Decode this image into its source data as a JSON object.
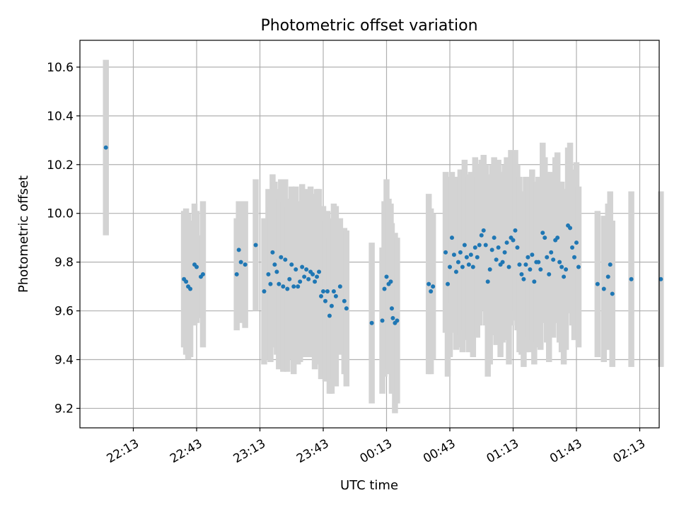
{
  "chart_data": {
    "type": "scatter",
    "title": "Photometric offset variation",
    "xlabel": "UTC time",
    "ylabel": "Photometric offset",
    "grid": true,
    "x_tick_labels": [
      "22:13",
      "22:43",
      "23:13",
      "23:43",
      "00:13",
      "00:43",
      "01:13",
      "01:43",
      "02:13"
    ],
    "x_ticks_minutes": [
      0,
      30,
      60,
      90,
      120,
      150,
      180,
      210,
      240
    ],
    "xlim_minutes": [
      -25,
      250
    ],
    "y_ticks": [
      9.2,
      9.4,
      9.6,
      9.8,
      10.0,
      10.2,
      10.4,
      10.6
    ],
    "ylim": [
      9.12,
      10.71
    ],
    "marker_color": "#1f77b4",
    "errorbar_color": "#d3d3d3",
    "series": [
      {
        "points": [
          [
            -13,
            10.27,
            0.36
          ],
          [
            24,
            9.73,
            0.28
          ],
          [
            25,
            9.72,
            0.3
          ],
          [
            26,
            9.7,
            0.3
          ],
          [
            27,
            9.69,
            0.28
          ],
          [
            29,
            9.79,
            0.25
          ],
          [
            30,
            9.78,
            0.23
          ],
          [
            32,
            9.74,
            0.17
          ],
          [
            33,
            9.75,
            0.3
          ],
          [
            49,
            9.75,
            0.23
          ],
          [
            50,
            9.85,
            0.2
          ],
          [
            51,
            9.8,
            0.25
          ],
          [
            53,
            9.79,
            0.26
          ],
          [
            58,
            9.87,
            0.27
          ],
          [
            62,
            9.68,
            0.3
          ],
          [
            64,
            9.75,
            0.35
          ],
          [
            65,
            9.71,
            0.32
          ],
          [
            66,
            9.84,
            0.32
          ],
          [
            67,
            9.79,
            0.34
          ],
          [
            68,
            9.76,
            0.34
          ],
          [
            69,
            9.71,
            0.35
          ],
          [
            70,
            9.82,
            0.32
          ],
          [
            71,
            9.7,
            0.35
          ],
          [
            72,
            9.81,
            0.33
          ],
          [
            73,
            9.69,
            0.34
          ],
          [
            74,
            9.73,
            0.33
          ],
          [
            75,
            9.79,
            0.32
          ],
          [
            76,
            9.7,
            0.36
          ],
          [
            77,
            9.77,
            0.34
          ],
          [
            78,
            9.7,
            0.32
          ],
          [
            79,
            9.72,
            0.33
          ],
          [
            80,
            9.78,
            0.34
          ],
          [
            81,
            9.74,
            0.33
          ],
          [
            82,
            9.77,
            0.33
          ],
          [
            83,
            9.73,
            0.32
          ],
          [
            84,
            9.76,
            0.35
          ],
          [
            85,
            9.75,
            0.33
          ],
          [
            86,
            9.72,
            0.36
          ],
          [
            87,
            9.74,
            0.36
          ],
          [
            88,
            9.76,
            0.34
          ],
          [
            89,
            9.66,
            0.34
          ],
          [
            90,
            9.68,
            0.35
          ],
          [
            91,
            9.64,
            0.33
          ],
          [
            92,
            9.68,
            0.33
          ],
          [
            93,
            9.58,
            0.32
          ],
          [
            94,
            9.62,
            0.36
          ],
          [
            95,
            9.68,
            0.36
          ],
          [
            96,
            9.66,
            0.37
          ],
          [
            98,
            9.7,
            0.28
          ],
          [
            100,
            9.64,
            0.3
          ],
          [
            101,
            9.61,
            0.32
          ],
          [
            113,
            9.55,
            0.33
          ],
          [
            118,
            9.56,
            0.3
          ],
          [
            119,
            9.69,
            0.36
          ],
          [
            120,
            9.74,
            0.4
          ],
          [
            121,
            9.71,
            0.35
          ],
          [
            122,
            9.72,
            0.32
          ],
          [
            122.5,
            9.61,
            0.35
          ],
          [
            123,
            9.57,
            0.3
          ],
          [
            124,
            9.55,
            0.37
          ],
          [
            125,
            9.56,
            0.34
          ],
          [
            140,
            9.71,
            0.37
          ],
          [
            141,
            9.68,
            0.34
          ],
          [
            142,
            9.7,
            0.3
          ],
          [
            148,
            9.84,
            0.33
          ],
          [
            149,
            9.71,
            0.38
          ],
          [
            150,
            9.78,
            0.37
          ],
          [
            151,
            9.9,
            0.27
          ],
          [
            152,
            9.83,
            0.32
          ],
          [
            153,
            9.76,
            0.32
          ],
          [
            154,
            9.8,
            0.35
          ],
          [
            155,
            9.84,
            0.34
          ],
          [
            156,
            9.78,
            0.35
          ],
          [
            157,
            9.87,
            0.35
          ],
          [
            158,
            9.82,
            0.34
          ],
          [
            159,
            9.79,
            0.36
          ],
          [
            160,
            9.83,
            0.34
          ],
          [
            161,
            9.78,
            0.37
          ],
          [
            162,
            9.86,
            0.37
          ],
          [
            163,
            9.82,
            0.33
          ],
          [
            164,
            9.87,
            0.33
          ],
          [
            165,
            9.91,
            0.31
          ],
          [
            166,
            9.93,
            0.31
          ],
          [
            167,
            9.87,
            0.33
          ],
          [
            168,
            9.72,
            0.39
          ],
          [
            169,
            9.77,
            0.39
          ],
          [
            170,
            9.85,
            0.35
          ],
          [
            171,
            9.9,
            0.33
          ],
          [
            172,
            9.81,
            0.35
          ],
          [
            173,
            9.86,
            0.36
          ],
          [
            174,
            9.79,
            0.38
          ],
          [
            175,
            9.8,
            0.33
          ],
          [
            176,
            9.84,
            0.36
          ],
          [
            177,
            9.88,
            0.35
          ],
          [
            178,
            9.78,
            0.4
          ],
          [
            179,
            9.9,
            0.36
          ],
          [
            180,
            9.89,
            0.33
          ],
          [
            181,
            9.93,
            0.33
          ],
          [
            182,
            9.86,
            0.34
          ],
          [
            183,
            9.79,
            0.36
          ],
          [
            184,
            9.75,
            0.33
          ],
          [
            185,
            9.73,
            0.36
          ],
          [
            186,
            9.79,
            0.36
          ],
          [
            187,
            9.82,
            0.33
          ],
          [
            188,
            9.77,
            0.34
          ],
          [
            189,
            9.83,
            0.35
          ],
          [
            190,
            9.72,
            0.34
          ],
          [
            191,
            9.8,
            0.33
          ],
          [
            192,
            9.8,
            0.35
          ],
          [
            193,
            9.77,
            0.33
          ],
          [
            194,
            9.92,
            0.37
          ],
          [
            195,
            9.9,
            0.33
          ],
          [
            196,
            9.82,
            0.35
          ],
          [
            197,
            9.75,
            0.36
          ],
          [
            198,
            9.84,
            0.33
          ],
          [
            199,
            9.81,
            0.32
          ],
          [
            200,
            9.89,
            0.34
          ],
          [
            201,
            9.9,
            0.35
          ],
          [
            202,
            9.8,
            0.33
          ],
          [
            203,
            9.78,
            0.35
          ],
          [
            204,
            9.74,
            0.36
          ],
          [
            205,
            9.77,
            0.33
          ],
          [
            206,
            9.95,
            0.32
          ],
          [
            207,
            9.94,
            0.35
          ],
          [
            208,
            9.86,
            0.32
          ],
          [
            209,
            9.82,
            0.34
          ],
          [
            210,
            9.88,
            0.33
          ],
          [
            211,
            9.78,
            0.33
          ],
          [
            220,
            9.71,
            0.3
          ],
          [
            223,
            9.69,
            0.3
          ],
          [
            225,
            9.74,
            0.3
          ],
          [
            226,
            9.79,
            0.3
          ],
          [
            227,
            9.67,
            0.3
          ],
          [
            236,
            9.73,
            0.36
          ],
          [
            250,
            9.73,
            0.36
          ]
        ]
      }
    ]
  }
}
